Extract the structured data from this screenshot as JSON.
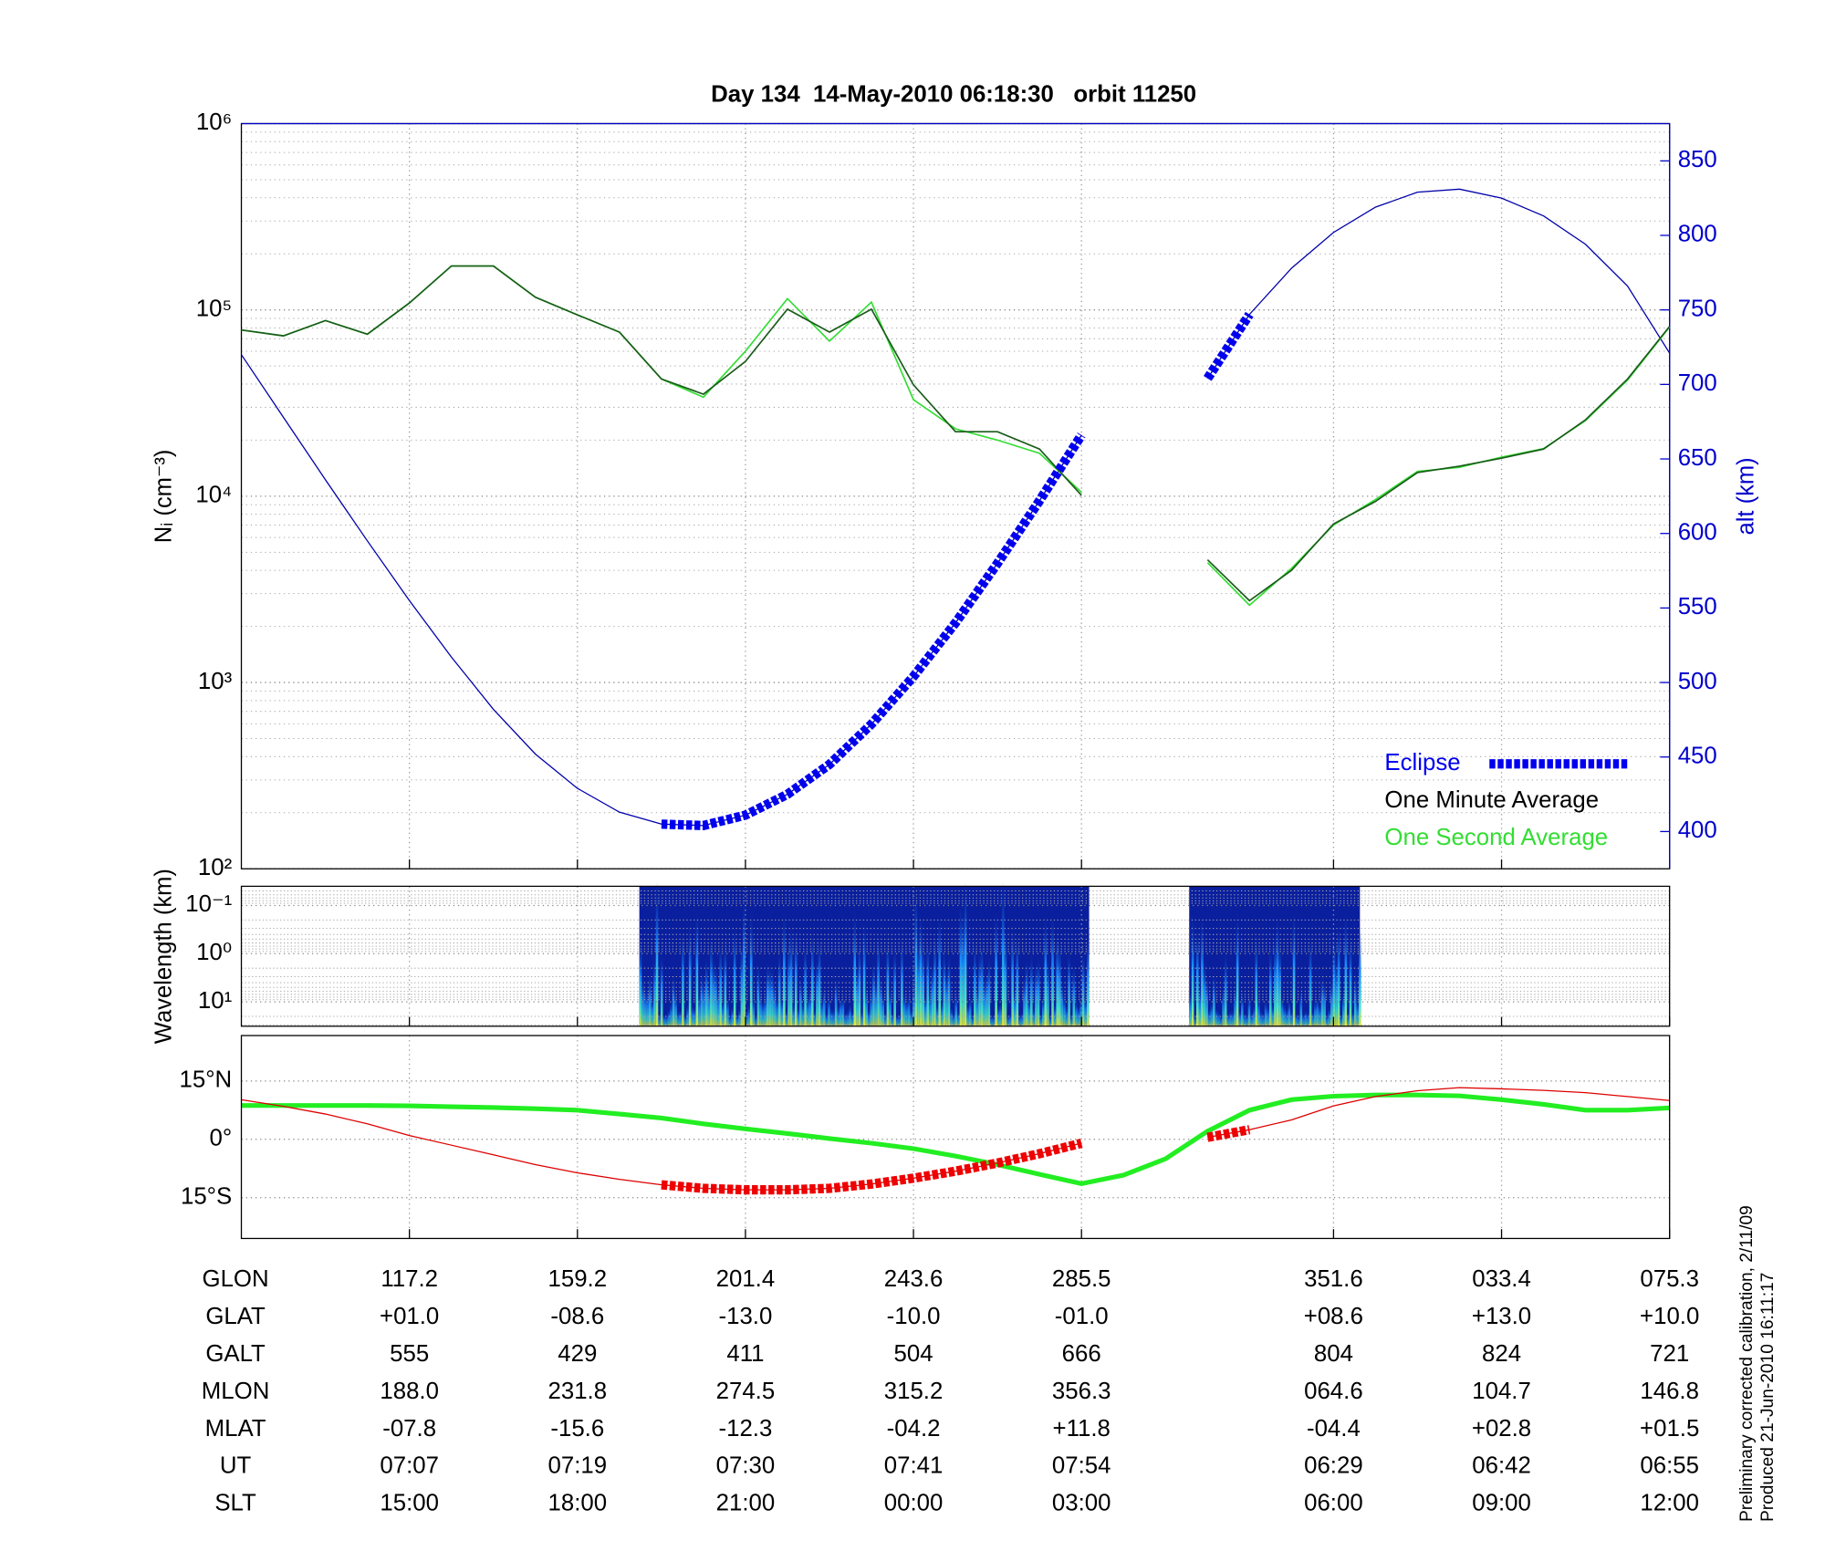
{
  "chart_data": [
    {
      "type": "line",
      "title": "Day 134  14-May-2010 06:18:30   orbit 11250",
      "ylabel": "Nᵢ (cm⁻³)",
      "y2label": "alt (km)",
      "log_y": true,
      "grid": true,
      "legend": "lower right",
      "categories": [
        null,
        null,
        null,
        null,
        "07:07",
        null,
        null,
        null,
        "07:19",
        null,
        null,
        null,
        "07:30",
        null,
        null,
        null,
        "07:41",
        null,
        null,
        null,
        "07:54",
        null,
        null,
        null,
        null,
        null,
        "06:29",
        null,
        null,
        null,
        "06:42",
        null,
        null,
        null,
        "06:55"
      ],
      "ylim": [
        100,
        1000000
      ],
      "yticks": [
        {
          "value": 100,
          "label": "10²"
        },
        {
          "value": 1000,
          "label": "10³"
        },
        {
          "value": 10000,
          "label": "10⁴"
        },
        {
          "value": 100000,
          "label": "10⁵"
        },
        {
          "value": 1000000,
          "label": "10⁶"
        }
      ],
      "y2lim": [
        375,
        875
      ],
      "y2ticks": [
        400,
        450,
        500,
        550,
        600,
        650,
        700,
        750,
        800,
        850
      ],
      "series": [
        {
          "name": "Eclipse",
          "color": "#0000ee",
          "axis": "y2",
          "values": [
            null,
            null,
            null,
            null,
            null,
            null,
            null,
            null,
            null,
            null,
            405,
            404,
            411,
            425,
            445,
            472,
            504,
            540,
            580,
            622,
            666,
            null,
            null,
            704,
            747,
            null,
            null,
            null,
            null,
            null,
            null,
            null,
            null,
            null,
            null
          ]
        },
        {
          "name": "One Minute Average",
          "color": "#1a5c1a",
          "values": [
            78000,
            72600,
            87600,
            74000,
            109000,
            172000,
            172000,
            117000,
            94000,
            76000,
            42600,
            35300,
            52900,
            101000,
            76000,
            101000,
            39600,
            22200,
            22200,
            17900,
            10100,
            null,
            null,
            4560,
            2750,
            4000,
            7100,
            9380,
            13400,
            14500,
            16000,
            17900,
            25700,
            42600,
            81500
          ]
        },
        {
          "name": "One Second Average",
          "color": "#33dd33",
          "values": [
            78000,
            72600,
            87600,
            74000,
            109000,
            172000,
            172000,
            117000,
            94000,
            76000,
            42600,
            34000,
            60000,
            115000,
            68000,
            110000,
            33000,
            23000,
            20000,
            17000,
            10500,
            null,
            null,
            4400,
            2600,
            4100,
            7000,
            9600,
            13600,
            14300,
            16200,
            18000,
            25500,
            42000,
            81000
          ]
        },
        {
          "color": "#0000aa",
          "axis": "y2",
          "values": [
            720,
            678,
            636,
            595,
            555,
            517,
            482,
            452,
            429,
            413,
            405,
            404,
            411,
            425,
            445,
            472,
            504,
            540,
            580,
            622,
            666,
            null,
            null,
            704,
            747,
            778,
            802,
            819,
            829,
            831,
            825,
            813,
            794,
            766,
            721
          ]
        }
      ]
    },
    {
      "type": "spectrogram",
      "ylabel": "Wavelength (km)",
      "log_y": true,
      "grid": true,
      "ylim": [
        32,
        0.04
      ],
      "yticks": [
        {
          "value": 0.1,
          "label": "10⁻¹"
        },
        {
          "value": 1,
          "label": "10⁰"
        },
        {
          "value": 10,
          "label": "10¹"
        }
      ]
    },
    {
      "type": "map",
      "grid": true,
      "ylim": [
        -25.5,
        26.7
      ],
      "yticks": [
        {
          "value": 15,
          "label": "15°N"
        },
        {
          "value": 0,
          "label": "0°"
        },
        {
          "value": -15,
          "label": "15°S"
        }
      ],
      "series": [
        {
          "color": "#22ee22",
          "values": [
            8.7,
            8.7,
            8.7,
            8.7,
            8.6,
            8.4,
            8.2,
            7.9,
            7.5,
            6.5,
            5.5,
            4,
            2.7,
            1.5,
            0.2,
            -1,
            -2.4,
            -4.3,
            -6.5,
            -9,
            -11.4,
            -9.2,
            -5,
            2.1,
            7.5,
            10.2,
            11.1,
            11.4,
            11.4,
            11.2,
            10.2,
            9,
            7.5,
            7.5,
            8.1
          ]
        },
        {
          "color": "#dd0000",
          "values": [
            10.2,
            8.5,
            6.5,
            4,
            1.0,
            -1.5,
            -4,
            -6.5,
            -8.6,
            -10.3,
            -11.7,
            -12.6,
            -13.0,
            -13.0,
            -12.6,
            -11.5,
            -10.0,
            -8.2,
            -6.1,
            -3.7,
            -1.0,
            null,
            null,
            0.5,
            2.5,
            5,
            8.6,
            11,
            12.5,
            13.3,
            13.0,
            12.6,
            12,
            11,
            10.0
          ]
        },
        {
          "color": "#ee0000",
          "eclipse": true,
          "values": [
            null,
            null,
            null,
            null,
            null,
            null,
            null,
            null,
            null,
            null,
            -11.7,
            -12.6,
            -13.0,
            -13.0,
            -12.6,
            -11.5,
            -10.0,
            -8.2,
            -6.1,
            -3.7,
            -1.0,
            null,
            null,
            0.5,
            2.5,
            null,
            null,
            null,
            null,
            null,
            null,
            null,
            null,
            null,
            null
          ]
        }
      ]
    }
  ],
  "table": {
    "rows": [
      {
        "label": "GLON",
        "values": [
          "117.2",
          "159.2",
          "201.4",
          "243.6",
          "285.5",
          "351.6",
          "033.4",
          "075.3"
        ]
      },
      {
        "label": "GLAT",
        "values": [
          "+01.0",
          "-08.6",
          "-13.0",
          "-10.0",
          "-01.0",
          "+08.6",
          "+13.0",
          "+10.0"
        ]
      },
      {
        "label": "GALT",
        "values": [
          "555",
          "429",
          "411",
          "504",
          "666",
          "804",
          "824",
          "721"
        ]
      },
      {
        "label": "MLON",
        "values": [
          "188.0",
          "231.8",
          "274.5",
          "315.2",
          "356.3",
          "064.6",
          "104.7",
          "146.8"
        ]
      },
      {
        "label": "MLAT",
        "values": [
          "-07.8",
          "-15.6",
          "-12.3",
          "-04.2",
          "+11.8",
          "-04.4",
          "+02.8",
          "+01.5"
        ]
      },
      {
        "label": "UT"
      },
      {
        "label": "SLT",
        "values": [
          "15:00",
          "18:00",
          "21:00",
          "00:00",
          "03:00",
          "06:00",
          "09:00",
          "12:00"
        ]
      }
    ]
  },
  "footnote": [
    "Preliminary corrected calibration, 2/11/09",
    "Produced 21-Jun-2010 16:11:17"
  ]
}
